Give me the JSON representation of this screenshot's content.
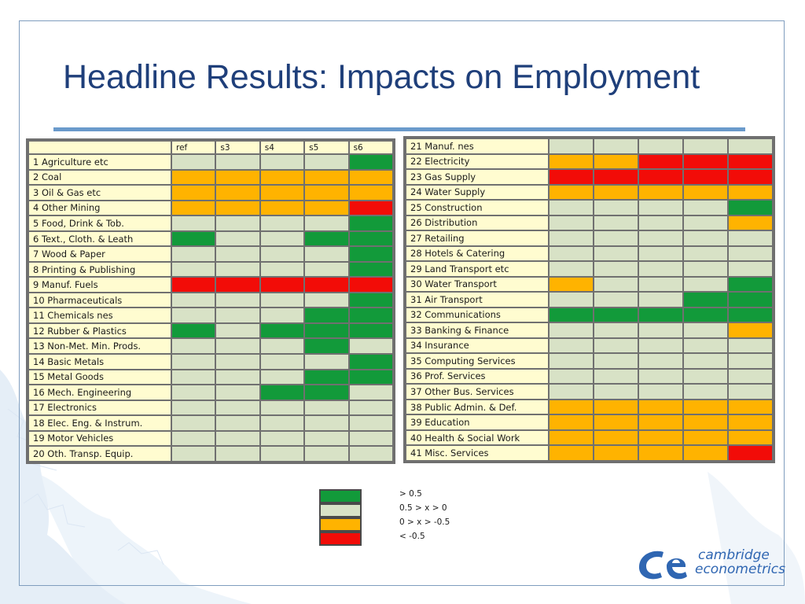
{
  "title": "Headline Results: Impacts on Employment",
  "colors": {
    "green": "#129a3a",
    "pale": "#d8e2c6",
    "orange": "#ffb300",
    "red": "#f20c08",
    "label_bg": "#fffcd0",
    "title": "#1f3f7a",
    "rule": "#6a9acb"
  },
  "chart_data": {
    "type": "table",
    "title": "Headline Results: Impacts on Employment",
    "columns": [
      "ref",
      "s3",
      "s4",
      "s5",
      "s6"
    ],
    "color_scale": {
      "G": "> 0.5",
      "P": "0.5 > x > 0",
      "O": "0 > x > -0.5",
      "R": "< -0.5"
    },
    "tables": [
      {
        "rows": [
          {
            "sector": "1 Agriculture etc",
            "values": [
              "P",
              "P",
              "P",
              "P",
              "G"
            ]
          },
          {
            "sector": "2 Coal",
            "values": [
              "O",
              "O",
              "O",
              "O",
              "O"
            ]
          },
          {
            "sector": "3 Oil & Gas etc",
            "values": [
              "O",
              "O",
              "O",
              "O",
              "O"
            ]
          },
          {
            "sector": "4 Other Mining",
            "values": [
              "O",
              "O",
              "O",
              "O",
              "R"
            ]
          },
          {
            "sector": "5 Food, Drink & Tob.",
            "values": [
              "P",
              "P",
              "P",
              "P",
              "G"
            ]
          },
          {
            "sector": "6 Text., Cloth. & Leath",
            "values": [
              "G",
              "P",
              "P",
              "G",
              "G"
            ]
          },
          {
            "sector": "7 Wood & Paper",
            "values": [
              "P",
              "P",
              "P",
              "P",
              "G"
            ]
          },
          {
            "sector": "8 Printing & Publishing",
            "values": [
              "P",
              "P",
              "P",
              "P",
              "G"
            ]
          },
          {
            "sector": "9 Manuf. Fuels",
            "values": [
              "R",
              "R",
              "R",
              "R",
              "R"
            ]
          },
          {
            "sector": "10 Pharmaceuticals",
            "values": [
              "P",
              "P",
              "P",
              "P",
              "G"
            ]
          },
          {
            "sector": "11 Chemicals nes",
            "values": [
              "P",
              "P",
              "P",
              "G",
              "G"
            ]
          },
          {
            "sector": "12 Rubber & Plastics",
            "values": [
              "G",
              "P",
              "G",
              "G",
              "G"
            ]
          },
          {
            "sector": "13 Non-Met. Min. Prods.",
            "values": [
              "P",
              "P",
              "P",
              "G",
              "P"
            ]
          },
          {
            "sector": "14 Basic Metals",
            "values": [
              "P",
              "P",
              "P",
              "P",
              "G"
            ]
          },
          {
            "sector": "15 Metal Goods",
            "values": [
              "P",
              "P",
              "P",
              "G",
              "G"
            ]
          },
          {
            "sector": "16 Mech. Engineering",
            "values": [
              "P",
              "P",
              "G",
              "G",
              "P"
            ]
          },
          {
            "sector": "17 Electronics",
            "values": [
              "P",
              "P",
              "P",
              "P",
              "P"
            ]
          },
          {
            "sector": "18 Elec. Eng. & Instrum.",
            "values": [
              "P",
              "P",
              "P",
              "P",
              "P"
            ]
          },
          {
            "sector": "19 Motor Vehicles",
            "values": [
              "P",
              "P",
              "P",
              "P",
              "P"
            ]
          },
          {
            "sector": "20 Oth. Transp. Equip.",
            "values": [
              "P",
              "P",
              "P",
              "P",
              "P"
            ]
          }
        ]
      },
      {
        "rows": [
          {
            "sector": "21 Manuf. nes",
            "values": [
              "P",
              "P",
              "P",
              "P",
              "P"
            ]
          },
          {
            "sector": "22 Electricity",
            "values": [
              "O",
              "O",
              "R",
              "R",
              "R"
            ]
          },
          {
            "sector": "23 Gas Supply",
            "values": [
              "R",
              "R",
              "R",
              "R",
              "R"
            ]
          },
          {
            "sector": "24 Water Supply",
            "values": [
              "O",
              "O",
              "O",
              "O",
              "O"
            ]
          },
          {
            "sector": "25 Construction",
            "values": [
              "P",
              "P",
              "P",
              "P",
              "G"
            ]
          },
          {
            "sector": "26 Distribution",
            "values": [
              "P",
              "P",
              "P",
              "P",
              "O"
            ]
          },
          {
            "sector": "27 Retailing",
            "values": [
              "P",
              "P",
              "P",
              "P",
              "P"
            ]
          },
          {
            "sector": "28 Hotels & Catering",
            "values": [
              "P",
              "P",
              "P",
              "P",
              "P"
            ]
          },
          {
            "sector": "29 Land Transport etc",
            "values": [
              "P",
              "P",
              "P",
              "P",
              "P"
            ]
          },
          {
            "sector": "30 Water Transport",
            "values": [
              "O",
              "P",
              "P",
              "P",
              "G"
            ]
          },
          {
            "sector": "31 Air Transport",
            "values": [
              "P",
              "P",
              "P",
              "G",
              "G"
            ]
          },
          {
            "sector": "32 Communications",
            "values": [
              "G",
              "G",
              "G",
              "G",
              "G"
            ]
          },
          {
            "sector": "33 Banking & Finance",
            "values": [
              "P",
              "P",
              "P",
              "P",
              "O"
            ]
          },
          {
            "sector": "34 Insurance",
            "values": [
              "P",
              "P",
              "P",
              "P",
              "P"
            ]
          },
          {
            "sector": "35 Computing Services",
            "values": [
              "P",
              "P",
              "P",
              "P",
              "P"
            ]
          },
          {
            "sector": "36 Prof. Services",
            "values": [
              "P",
              "P",
              "P",
              "P",
              "P"
            ]
          },
          {
            "sector": "37 Other Bus. Services",
            "values": [
              "P",
              "P",
              "P",
              "P",
              "P"
            ]
          },
          {
            "sector": "38 Public Admin. & Def.",
            "values": [
              "O",
              "O",
              "O",
              "O",
              "O"
            ]
          },
          {
            "sector": "39 Education",
            "values": [
              "O",
              "O",
              "O",
              "O",
              "O"
            ]
          },
          {
            "sector": "40 Health & Social Work",
            "values": [
              "O",
              "O",
              "O",
              "O",
              "O"
            ]
          },
          {
            "sector": "41 Misc. Services",
            "values": [
              "O",
              "O",
              "O",
              "O",
              "R"
            ]
          }
        ]
      }
    ],
    "legend": [
      {
        "key": "G",
        "label": "> 0.5"
      },
      {
        "key": "P",
        "label": "0.5 > x > 0"
      },
      {
        "key": "O",
        "label": "0 > x > -0.5"
      },
      {
        "key": "R",
        "label": "< -0.5"
      }
    ]
  },
  "logo": {
    "line1": "cambridge",
    "line2": "econometrics",
    "mark": "CE",
    "color": "#2f66b2"
  }
}
